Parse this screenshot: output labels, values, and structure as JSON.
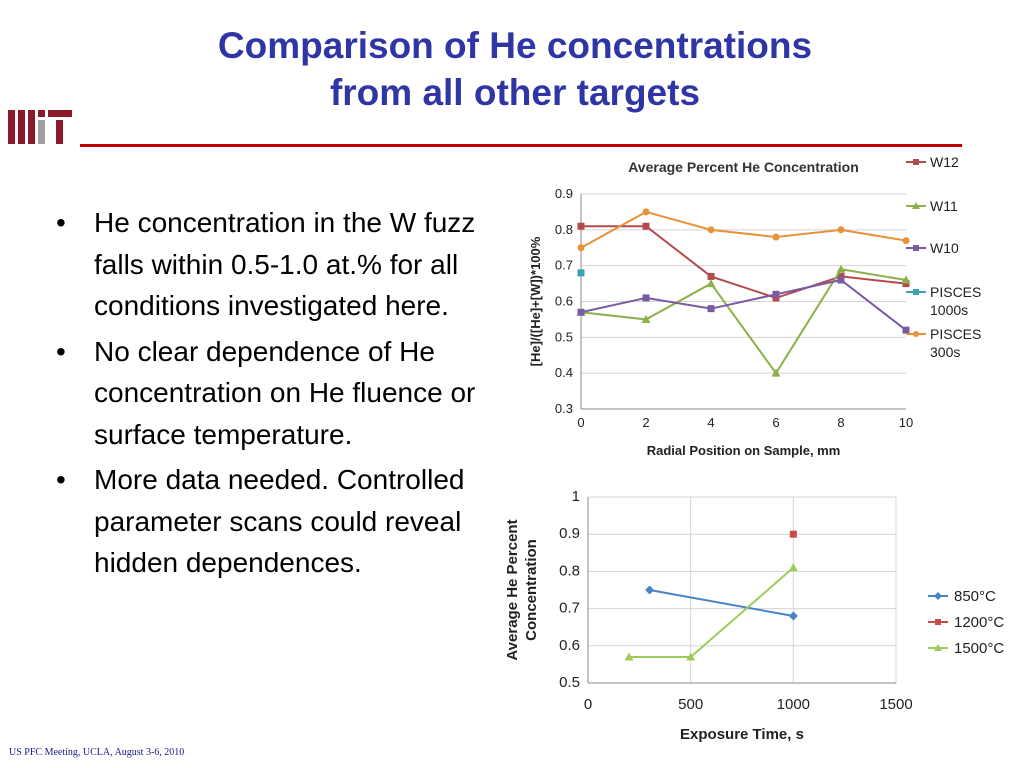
{
  "slide": {
    "title_line1": "Comparison of He concentrations",
    "title_line2": "from all other targets",
    "logo_text": "MIT",
    "footer": "US PFC Meeting, UCLA, August 3-6, 2010",
    "bullet_char": "•",
    "bullets": [
      "He concentration in the W fuzz falls within 0.5-1.0 at.% for all conditions investigated here.",
      "No clear dependence of He concentration on He fluence or surface temperature.",
      "More data needed. Controlled parameter scans could reveal hidden dependences."
    ]
  },
  "colors": {
    "title": "#2f35a5",
    "rule": "#c00000",
    "logo": "#8a1a2a",
    "W12": "#b54a4a",
    "W11": "#8db04a",
    "W10": "#7a5aa3",
    "PISCES_1000s": "#3aa0b2",
    "PISCES_300s": "#e8923a",
    "T850": "#4a84c4",
    "T1200": "#c84a4a",
    "T1500": "#9ccc5a"
  },
  "chart_data": [
    {
      "type": "line",
      "title": "Average Percent He Concentration",
      "xlabel": "Radial Position on Sample, mm",
      "ylabel": "[He]/([He]+[W])*100%",
      "xlim": [
        0,
        10
      ],
      "ylim": [
        0.3,
        0.9
      ],
      "xticks": [
        "0",
        "2",
        "4",
        "6",
        "8",
        "10"
      ],
      "yticks": [
        "0.3",
        "0.4",
        "0.5",
        "0.6",
        "0.7",
        "0.8",
        "0.9"
      ],
      "grid": true,
      "legend_position": "right",
      "series": [
        {
          "name": "W12",
          "marker": "square",
          "color": "#b54a4a",
          "x": [
            0,
            2,
            4,
            6,
            8,
            10
          ],
          "y": [
            0.81,
            0.81,
            0.67,
            0.61,
            0.67,
            0.65
          ]
        },
        {
          "name": "W11",
          "marker": "triangle",
          "color": "#8db04a",
          "x": [
            0,
            2,
            4,
            6,
            8,
            10
          ],
          "y": [
            0.57,
            0.55,
            0.65,
            0.4,
            0.69,
            0.66
          ]
        },
        {
          "name": "W10",
          "marker": "square",
          "color": "#7a5aa3",
          "x": [
            0,
            2,
            4,
            6,
            8,
            10
          ],
          "y": [
            0.57,
            0.61,
            0.58,
            0.62,
            0.66,
            0.52
          ]
        },
        {
          "name": "PISCES 1000s",
          "marker": "square",
          "color": "#3aa0b2",
          "x": [
            0
          ],
          "y": [
            0.68
          ]
        },
        {
          "name": "PISCES 300s",
          "marker": "circle",
          "color": "#e8923a",
          "x": [
            0,
            2,
            4,
            6,
            8,
            10
          ],
          "y": [
            0.75,
            0.85,
            0.8,
            0.78,
            0.8,
            0.77
          ]
        }
      ]
    },
    {
      "type": "line",
      "title": "",
      "xlabel": "Exposure Time, s",
      "ylabel": "Average He Percent Concentration",
      "xlim": [
        0,
        1500
      ],
      "ylim": [
        0.5,
        1
      ],
      "xticks": [
        "0",
        "500",
        "1000",
        "1500"
      ],
      "yticks": [
        "0.5",
        "0.6",
        "0.7",
        "0.8",
        "0.9",
        "1"
      ],
      "grid": true,
      "legend_position": "right",
      "series": [
        {
          "name": "850°C",
          "marker": "diamond",
          "color": "#4a84c4",
          "x": [
            300,
            1000
          ],
          "y": [
            0.75,
            0.68
          ]
        },
        {
          "name": "1200°C",
          "marker": "square",
          "color": "#c84a4a",
          "x": [
            1000
          ],
          "y": [
            0.9
          ]
        },
        {
          "name": "1500°C",
          "marker": "triangle",
          "color": "#9ccc5a",
          "x": [
            200,
            500,
            1000
          ],
          "y": [
            0.57,
            0.57,
            0.81
          ]
        }
      ]
    }
  ]
}
